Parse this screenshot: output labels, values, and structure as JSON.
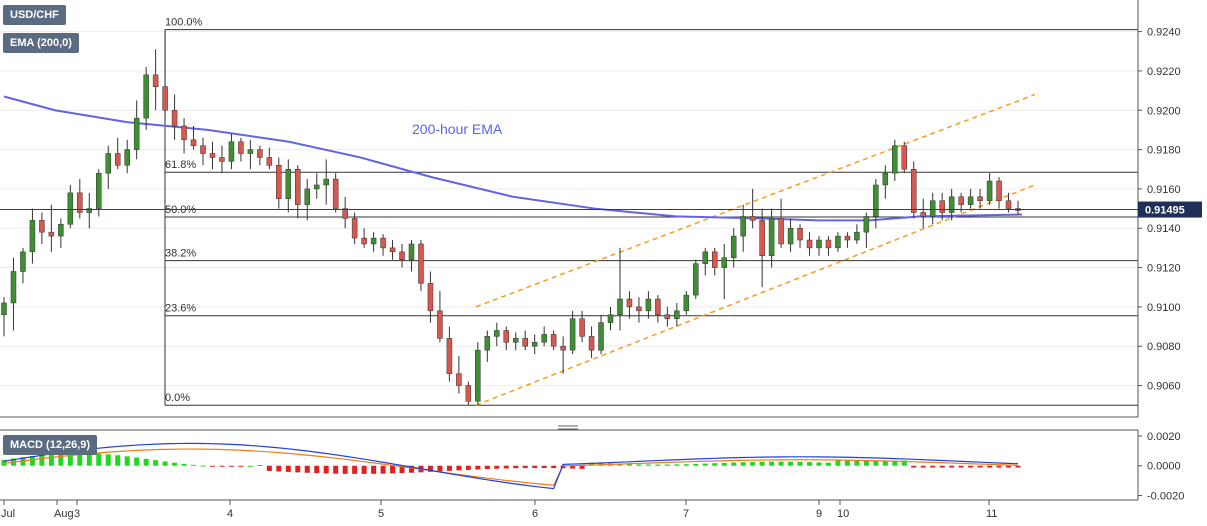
{
  "chart_data": {
    "type": "candlestick",
    "symbol": "USD/CHF",
    "indicator_label": "EMA (200,0)",
    "ema_annotation": "200-hour EMA",
    "current_price_label": "0.91495",
    "y_ticks": [
      "0.9240",
      "0.9220",
      "0.9200",
      "0.9180",
      "0.9160",
      "0.9140",
      "0.9120",
      "0.9100",
      "0.9080",
      "0.9060"
    ],
    "ylim": [
      0.9044,
      0.9252
    ],
    "x_ticks": [
      "Jul",
      "Aug",
      "3",
      "4",
      "5",
      "6",
      "7",
      "9",
      "10",
      "11"
    ],
    "fibonacci": [
      {
        "label": "100.0%",
        "value": 0.9241
      },
      {
        "label": "61.8%",
        "value": 0.91685
      },
      {
        "label": "50.0%",
        "value": 0.91457
      },
      {
        "label": "38.2%",
        "value": 0.91235
      },
      {
        "label": "23.6%",
        "value": 0.90955
      },
      {
        "label": "0.0%",
        "value": 0.905
      }
    ],
    "channel": {
      "upper": {
        "start": [
          0,
          0.91
        ],
        "end": [
          1,
          0.9208
        ]
      },
      "lower": {
        "start": [
          0,
          0.905
        ],
        "end": [
          1,
          0.9162
        ]
      }
    },
    "candles": [
      [
        0.9096,
        0.9105,
        0.9085,
        0.9102
      ],
      [
        0.9102,
        0.9125,
        0.9088,
        0.9118
      ],
      [
        0.9118,
        0.913,
        0.9112,
        0.9128
      ],
      [
        0.9128,
        0.915,
        0.9122,
        0.9144
      ],
      [
        0.9144,
        0.9148,
        0.9132,
        0.9138
      ],
      [
        0.9138,
        0.9152,
        0.9128,
        0.9136
      ],
      [
        0.9136,
        0.9145,
        0.913,
        0.9142
      ],
      [
        0.9142,
        0.9162,
        0.914,
        0.9158
      ],
      [
        0.9158,
        0.9165,
        0.9145,
        0.9148
      ],
      [
        0.9148,
        0.9158,
        0.914,
        0.915
      ],
      [
        0.915,
        0.917,
        0.9146,
        0.9168
      ],
      [
        0.9168,
        0.9182,
        0.916,
        0.9178
      ],
      [
        0.9178,
        0.9186,
        0.917,
        0.9172
      ],
      [
        0.9172,
        0.9185,
        0.9168,
        0.918
      ],
      [
        0.918,
        0.9205,
        0.9175,
        0.9196
      ],
      [
        0.9196,
        0.9222,
        0.919,
        0.9218
      ],
      [
        0.9218,
        0.9231,
        0.92,
        0.9212
      ],
      [
        0.9212,
        0.9241,
        0.9195,
        0.92
      ],
      [
        0.92,
        0.9208,
        0.9185,
        0.9192
      ],
      [
        0.9192,
        0.9196,
        0.9178,
        0.9185
      ],
      [
        0.9185,
        0.9192,
        0.918,
        0.9182
      ],
      [
        0.9182,
        0.9186,
        0.9172,
        0.9178
      ],
      [
        0.9178,
        0.9184,
        0.917,
        0.9176
      ],
      [
        0.9176,
        0.9182,
        0.9168,
        0.9174
      ],
      [
        0.9174,
        0.9188,
        0.917,
        0.9184
      ],
      [
        0.9184,
        0.9186,
        0.9174,
        0.9178
      ],
      [
        0.9178,
        0.9185,
        0.917,
        0.918
      ],
      [
        0.918,
        0.9182,
        0.9172,
        0.9176
      ],
      [
        0.9176,
        0.9181,
        0.917,
        0.9172
      ],
      [
        0.9172,
        0.9176,
        0.915,
        0.9155
      ],
      [
        0.9155,
        0.9175,
        0.9148,
        0.917
      ],
      [
        0.917,
        0.9172,
        0.9145,
        0.9152
      ],
      [
        0.9152,
        0.9165,
        0.9144,
        0.916
      ],
      [
        0.916,
        0.9168,
        0.9155,
        0.9162
      ],
      [
        0.9162,
        0.9175,
        0.9152,
        0.9165
      ],
      [
        0.9165,
        0.9168,
        0.9148,
        0.915
      ],
      [
        0.915,
        0.9156,
        0.914,
        0.9145
      ],
      [
        0.9145,
        0.9148,
        0.9132,
        0.9135
      ],
      [
        0.9135,
        0.914,
        0.913,
        0.9132
      ],
      [
        0.9132,
        0.9138,
        0.9128,
        0.9135
      ],
      [
        0.9135,
        0.9137,
        0.9126,
        0.913
      ],
      [
        0.913,
        0.9134,
        0.9124,
        0.9128
      ],
      [
        0.9128,
        0.9132,
        0.912,
        0.9124
      ],
      [
        0.9124,
        0.9134,
        0.9118,
        0.9132
      ],
      [
        0.9132,
        0.9134,
        0.9108,
        0.9112
      ],
      [
        0.9112,
        0.9118,
        0.9092,
        0.9098
      ],
      [
        0.9098,
        0.9108,
        0.9082,
        0.9084
      ],
      [
        0.9084,
        0.909,
        0.9062,
        0.9066
      ],
      [
        0.9066,
        0.9075,
        0.9056,
        0.906
      ],
      [
        0.906,
        0.9062,
        0.905,
        0.9052
      ],
      [
        0.9052,
        0.9082,
        0.905,
        0.9078
      ],
      [
        0.9078,
        0.9088,
        0.9072,
        0.9085
      ],
      [
        0.9085,
        0.9092,
        0.908,
        0.9088
      ],
      [
        0.9088,
        0.909,
        0.9078,
        0.9082
      ],
      [
        0.9082,
        0.9087,
        0.9078,
        0.9084
      ],
      [
        0.9084,
        0.9088,
        0.9078,
        0.908
      ],
      [
        0.908,
        0.9086,
        0.9076,
        0.9082
      ],
      [
        0.9082,
        0.909,
        0.908,
        0.9086
      ],
      [
        0.9086,
        0.9088,
        0.9078,
        0.908
      ],
      [
        0.908,
        0.9085,
        0.9066,
        0.9078
      ],
      [
        0.9078,
        0.9098,
        0.9076,
        0.9094
      ],
      [
        0.9094,
        0.9098,
        0.9082,
        0.9085
      ],
      [
        0.9085,
        0.909,
        0.9074,
        0.9078
      ],
      [
        0.9078,
        0.9096,
        0.9076,
        0.9092
      ],
      [
        0.9092,
        0.91,
        0.9088,
        0.9096
      ],
      [
        0.9096,
        0.913,
        0.9088,
        0.9104
      ],
      [
        0.9104,
        0.9108,
        0.9094,
        0.91
      ],
      [
        0.91,
        0.9105,
        0.9092,
        0.9098
      ],
      [
        0.9098,
        0.9108,
        0.9094,
        0.9104
      ],
      [
        0.9104,
        0.9106,
        0.9092,
        0.9096
      ],
      [
        0.9096,
        0.91,
        0.909,
        0.9094
      ],
      [
        0.9094,
        0.9102,
        0.909,
        0.9098
      ],
      [
        0.9098,
        0.9108,
        0.9096,
        0.9106
      ],
      [
        0.9106,
        0.9124,
        0.9104,
        0.9122
      ],
      [
        0.9122,
        0.913,
        0.9116,
        0.9128
      ],
      [
        0.9128,
        0.913,
        0.9116,
        0.912
      ],
      [
        0.912,
        0.9132,
        0.9104,
        0.9125
      ],
      [
        0.9125,
        0.914,
        0.912,
        0.9136
      ],
      [
        0.9136,
        0.9152,
        0.9128,
        0.9146
      ],
      [
        0.9146,
        0.916,
        0.914,
        0.9144
      ],
      [
        0.9144,
        0.915,
        0.911,
        0.9126
      ],
      [
        0.9126,
        0.915,
        0.912,
        0.9145
      ],
      [
        0.9145,
        0.9155,
        0.913,
        0.9132
      ],
      [
        0.9132,
        0.9145,
        0.9128,
        0.914
      ],
      [
        0.914,
        0.9142,
        0.913,
        0.9134
      ],
      [
        0.9134,
        0.9138,
        0.9126,
        0.913
      ],
      [
        0.913,
        0.9136,
        0.9126,
        0.9134
      ],
      [
        0.9134,
        0.9136,
        0.9126,
        0.913
      ],
      [
        0.913,
        0.9138,
        0.9128,
        0.9136
      ],
      [
        0.9136,
        0.9138,
        0.913,
        0.9134
      ],
      [
        0.9134,
        0.9142,
        0.9132,
        0.9138
      ],
      [
        0.9138,
        0.9148,
        0.913,
        0.9146
      ],
      [
        0.9146,
        0.9165,
        0.914,
        0.9162
      ],
      [
        0.9162,
        0.9172,
        0.9155,
        0.9168
      ],
      [
        0.9168,
        0.9185,
        0.9164,
        0.9182
      ],
      [
        0.9182,
        0.9184,
        0.9168,
        0.917
      ],
      [
        0.917,
        0.9174,
        0.9145,
        0.9148
      ],
      [
        0.9148,
        0.9155,
        0.914,
        0.9146
      ],
      [
        0.9146,
        0.9158,
        0.9142,
        0.9154
      ],
      [
        0.9154,
        0.9158,
        0.9144,
        0.9148
      ],
      [
        0.9148,
        0.916,
        0.9144,
        0.9156
      ],
      [
        0.9156,
        0.9158,
        0.9148,
        0.9152
      ],
      [
        0.9152,
        0.916,
        0.915,
        0.9156
      ],
      [
        0.9156,
        0.916,
        0.915,
        0.9154
      ],
      [
        0.9154,
        0.9168,
        0.9152,
        0.9164
      ],
      [
        0.9164,
        0.9166,
        0.915,
        0.9154
      ],
      [
        0.9154,
        0.9158,
        0.9148,
        0.915
      ],
      [
        0.915,
        0.9154,
        0.9147,
        0.9149
      ]
    ],
    "ema": [
      [
        0,
        0.9207
      ],
      [
        0.05,
        0.92
      ],
      [
        0.12,
        0.9194
      ],
      [
        0.2,
        0.919
      ],
      [
        0.28,
        0.9184
      ],
      [
        0.35,
        0.9176
      ],
      [
        0.42,
        0.9166
      ],
      [
        0.5,
        0.9156
      ],
      [
        0.58,
        0.915
      ],
      [
        0.66,
        0.9146
      ],
      [
        0.74,
        0.9145
      ],
      [
        0.8,
        0.9144
      ],
      [
        0.85,
        0.9144
      ],
      [
        0.9,
        0.9146
      ],
      [
        1.0,
        0.9147
      ]
    ],
    "macd_label": "MACD (12,26,9)",
    "macd_ticks": [
      "0.0020",
      "0.0000",
      "-0.0020"
    ],
    "macd_ylim": [
      -0.0023,
      0.0024
    ]
  }
}
